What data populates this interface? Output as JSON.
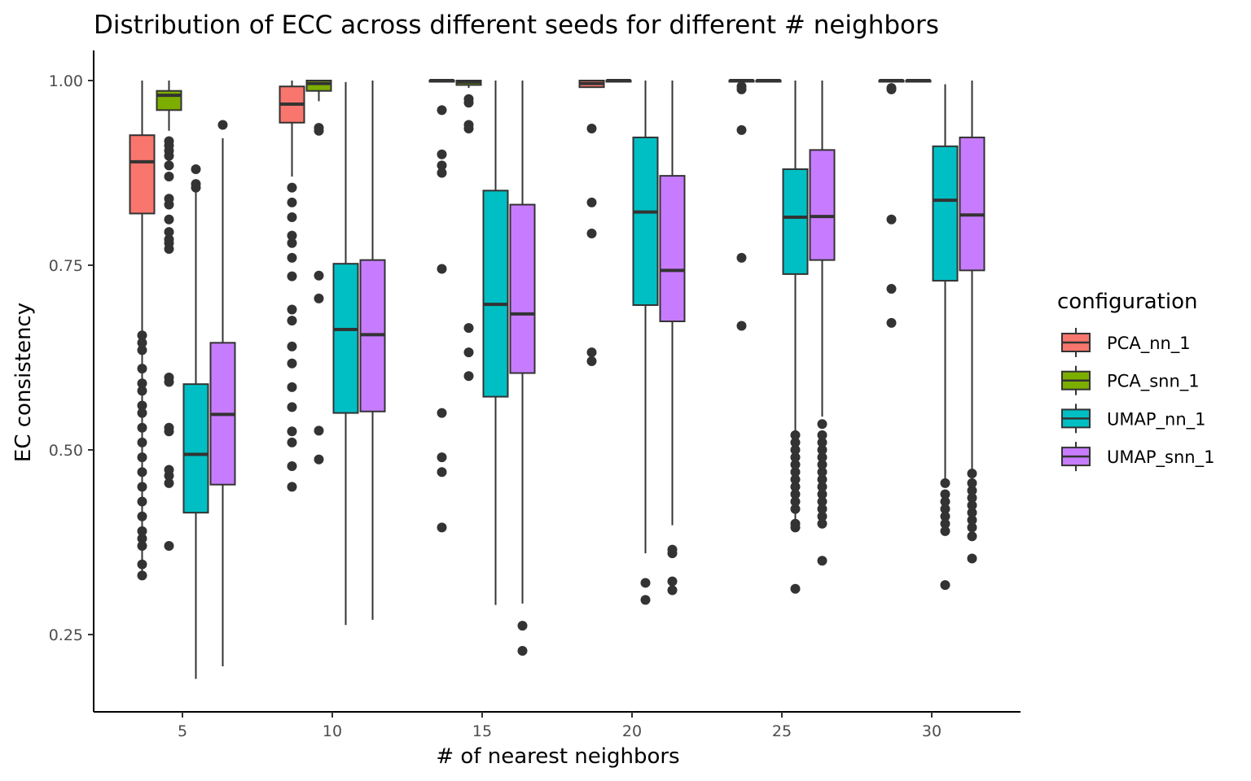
{
  "chart_data": {
    "type": "boxplot",
    "title": "Distribution of ECC across different seeds for different # neighbors",
    "xlabel": "# of nearest neighbors",
    "ylabel": "EC consistency",
    "categories": [
      "5",
      "10",
      "15",
      "20",
      "25",
      "30"
    ],
    "yticks": [
      "0.25",
      "0.50",
      "0.75",
      "1.00"
    ],
    "ylim": [
      0.15,
      1.04
    ],
    "grid": false,
    "legend": {
      "title": "configuration",
      "position": "right"
    },
    "series": [
      {
        "name": "PCA_nn_1",
        "color": "#F8766D",
        "boxes": [
          {
            "whisker_low": 0.33,
            "q1": 0.82,
            "median": 0.89,
            "q3": 0.926,
            "whisker_high": 1.0,
            "outliers": [
              0.33,
              0.345,
              0.37,
              0.38,
              0.39,
              0.41,
              0.43,
              0.45,
              0.47,
              0.49,
              0.51,
              0.53,
              0.55,
              0.56,
              0.58,
              0.59,
              0.61,
              0.635,
              0.645,
              0.655
            ]
          },
          {
            "whisker_low": 0.87,
            "q1": 0.943,
            "median": 0.968,
            "q3": 0.992,
            "whisker_high": 1.0,
            "outliers": [
              0.45,
              0.478,
              0.51,
              0.525,
              0.558,
              0.585,
              0.617,
              0.64,
              0.675,
              0.69,
              0.735,
              0.76,
              0.78,
              0.79,
              0.815,
              0.835,
              0.855
            ]
          },
          {
            "whisker_low": 0.998,
            "q1": 0.999,
            "median": 1.0,
            "q3": 1.0,
            "whisker_high": 1.0,
            "outliers": [
              0.395,
              0.47,
              0.49,
              0.55,
              0.745,
              0.875,
              0.885,
              0.9,
              0.96
            ]
          },
          {
            "whisker_low": 0.99,
            "q1": 0.991,
            "median": 0.996,
            "q3": 1.0,
            "whisker_high": 1.0,
            "outliers": [
              0.62,
              0.632,
              0.793,
              0.835,
              0.935
            ]
          },
          {
            "whisker_low": 0.998,
            "q1": 0.999,
            "median": 1.0,
            "q3": 1.0,
            "whisker_high": 1.0,
            "outliers": [
              0.668,
              0.76,
              0.933,
              0.988,
              0.992
            ]
          },
          {
            "whisker_low": 0.998,
            "q1": 0.999,
            "median": 1.0,
            "q3": 1.0,
            "whisker_high": 1.0,
            "outliers": [
              0.672,
              0.718,
              0.812,
              0.988,
              0.99
            ]
          }
        ]
      },
      {
        "name": "PCA_snn_1",
        "color": "#7CAE00",
        "boxes": [
          {
            "whisker_low": 0.932,
            "q1": 0.96,
            "median": 0.98,
            "q3": 0.986,
            "whisker_high": 1.0,
            "outliers": [
              0.37,
              0.455,
              0.465,
              0.473,
              0.525,
              0.53,
              0.592,
              0.598,
              0.772,
              0.78,
              0.785,
              0.795,
              0.812,
              0.832,
              0.84,
              0.87,
              0.885,
              0.898,
              0.905,
              0.912,
              0.918
            ]
          },
          {
            "whisker_low": 0.972,
            "q1": 0.986,
            "median": 0.996,
            "q3": 1.0,
            "whisker_high": 1.0,
            "outliers": [
              0.487,
              0.526,
              0.705,
              0.736,
              0.932,
              0.936
            ]
          },
          {
            "whisker_low": 0.99,
            "q1": 0.994,
            "median": 0.998,
            "q3": 1.0,
            "whisker_high": 1.0,
            "outliers": [
              0.6,
              0.632,
              0.665,
              0.935,
              0.94,
              0.97,
              0.975
            ]
          },
          {
            "whisker_low": 0.999,
            "q1": 0.999,
            "median": 1.0,
            "q3": 1.0,
            "whisker_high": 1.0,
            "outliers": []
          },
          {
            "whisker_low": 0.999,
            "q1": 0.999,
            "median": 1.0,
            "q3": 1.0,
            "whisker_high": 1.0,
            "outliers": []
          },
          {
            "whisker_low": 0.999,
            "q1": 0.999,
            "median": 1.0,
            "q3": 1.0,
            "whisker_high": 1.0,
            "outliers": []
          }
        ]
      },
      {
        "name": "UMAP_nn_1",
        "color": "#00BFC4",
        "boxes": [
          {
            "whisker_low": 0.19,
            "q1": 0.415,
            "median": 0.494,
            "q3": 0.589,
            "whisker_high": 0.855,
            "outliers": [
              0.855,
              0.86,
              0.88
            ]
          },
          {
            "whisker_low": 0.263,
            "q1": 0.55,
            "median": 0.663,
            "q3": 0.752,
            "whisker_high": 0.998,
            "outliers": []
          },
          {
            "whisker_low": 0.29,
            "q1": 0.572,
            "median": 0.697,
            "q3": 0.851,
            "whisker_high": 1.0,
            "outliers": []
          },
          {
            "whisker_low": 0.36,
            "q1": 0.696,
            "median": 0.822,
            "q3": 0.923,
            "whisker_high": 1.0,
            "outliers": [
              0.297,
              0.32
            ]
          },
          {
            "whisker_low": 0.4,
            "q1": 0.738,
            "median": 0.815,
            "q3": 0.88,
            "whisker_high": 1.0,
            "outliers": [
              0.312,
              0.395,
              0.4,
              0.42,
              0.43,
              0.44,
              0.45,
              0.46,
              0.47,
              0.48,
              0.49,
              0.5,
              0.51,
              0.52
            ]
          },
          {
            "whisker_low": 0.46,
            "q1": 0.729,
            "median": 0.838,
            "q3": 0.911,
            "whisker_high": 0.995,
            "outliers": [
              0.317,
              0.39,
              0.4,
              0.41,
              0.42,
              0.43,
              0.44,
              0.455
            ]
          }
        ]
      },
      {
        "name": "UMAP_snn_1",
        "color": "#C77CFF",
        "boxes": [
          {
            "whisker_low": 0.207,
            "q1": 0.453,
            "median": 0.548,
            "q3": 0.645,
            "whisker_high": 0.922,
            "outliers": [
              0.94
            ]
          },
          {
            "whisker_low": 0.27,
            "q1": 0.552,
            "median": 0.656,
            "q3": 0.757,
            "whisker_high": 1.0,
            "outliers": []
          },
          {
            "whisker_low": 0.292,
            "q1": 0.604,
            "median": 0.684,
            "q3": 0.832,
            "whisker_high": 1.0,
            "outliers": [
              0.228,
              0.262
            ]
          },
          {
            "whisker_low": 0.398,
            "q1": 0.674,
            "median": 0.743,
            "q3": 0.871,
            "whisker_high": 1.0,
            "outliers": [
              0.31,
              0.322,
              0.36,
              0.365
            ]
          },
          {
            "whisker_low": 0.545,
            "q1": 0.757,
            "median": 0.816,
            "q3": 0.906,
            "whisker_high": 1.0,
            "outliers": [
              0.35,
              0.4,
              0.41,
              0.42,
              0.43,
              0.44,
              0.45,
              0.46,
              0.47,
              0.48,
              0.49,
              0.5,
              0.51,
              0.52,
              0.535
            ]
          },
          {
            "whisker_low": 0.47,
            "q1": 0.743,
            "median": 0.818,
            "q3": 0.923,
            "whisker_high": 1.0,
            "outliers": [
              0.353,
              0.383,
              0.395,
              0.405,
              0.415,
              0.425,
              0.435,
              0.445,
              0.455,
              0.468
            ]
          }
        ]
      }
    ]
  }
}
